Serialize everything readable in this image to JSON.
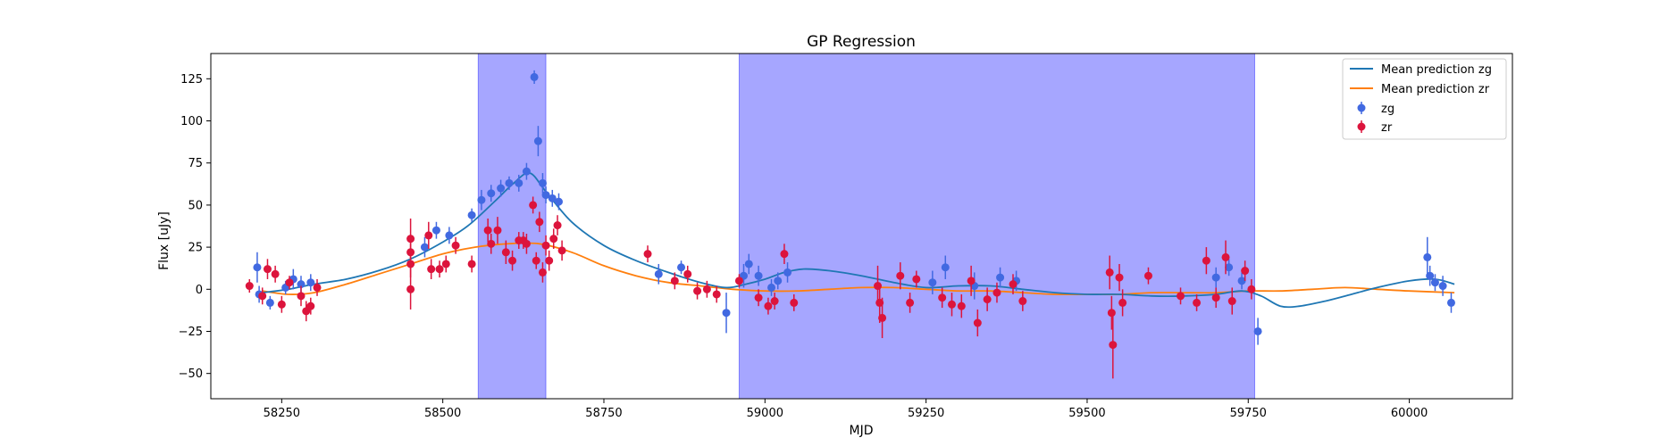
{
  "chart_data": {
    "type": "scatter",
    "title": "GP Regression",
    "xlabel": "MJD",
    "ylabel": "Flux [uJy]",
    "xlim": [
      58140,
      60160
    ],
    "ylim": [
      -65,
      140
    ],
    "xticks": [
      58250,
      58500,
      58750,
      59000,
      59250,
      59500,
      59750,
      60000
    ],
    "yticks": [
      -50,
      -25,
      0,
      25,
      50,
      75,
      100,
      125
    ],
    "legend_position": "top-right",
    "colors": {
      "zg_line": "#1f77b4",
      "zr_line": "#ff7f0e",
      "zg_points": "#4169e1",
      "zr_points": "#dc143c",
      "shade": "#0000ff"
    },
    "shaded_regions": [
      [
        58555,
        58660
      ],
      [
        58960,
        59760
      ]
    ],
    "mean_prediction_zg": {
      "name": "Mean prediction zg",
      "x": [
        58220,
        58260,
        58300,
        58350,
        58400,
        58450,
        58500,
        58540,
        58580,
        58610,
        58635,
        58660,
        58700,
        58750,
        58800,
        58850,
        58900,
        58940,
        58970,
        59000,
        59030,
        59060,
        59100,
        59150,
        59200,
        59250,
        59300,
        59350,
        59400,
        59450,
        59500,
        59550,
        59600,
        59650,
        59700,
        59740,
        59770,
        59800,
        59830,
        59870,
        59910,
        59950,
        60000,
        60040,
        60070
      ],
      "y": [
        -2,
        0,
        3,
        6,
        11,
        18,
        28,
        38,
        52,
        63,
        69,
        58,
        40,
        26,
        17,
        10,
        4,
        1,
        3,
        6,
        10,
        12,
        11,
        8,
        4,
        1,
        2,
        2,
        0,
        -2,
        -3,
        -3,
        -4,
        -4,
        -3,
        -1,
        -4,
        -10,
        -10,
        -7,
        -3,
        1,
        5,
        6,
        3
      ]
    },
    "mean_prediction_zr": {
      "name": "Mean prediction zr",
      "x": [
        58220,
        58260,
        58300,
        58350,
        58400,
        58450,
        58500,
        58550,
        58600,
        58650,
        58700,
        58750,
        58800,
        58850,
        58900,
        58950,
        59000,
        59050,
        59100,
        59150,
        59200,
        59250,
        59300,
        59350,
        59400,
        59450,
        59500,
        59550,
        59600,
        59650,
        59700,
        59750,
        59800,
        59850,
        59900,
        59950,
        60000,
        60070
      ],
      "y": [
        -1,
        -3,
        -2,
        3,
        9,
        15,
        21,
        25,
        27,
        27,
        22,
        14,
        8,
        4,
        2,
        0,
        -1,
        -1,
        0,
        1,
        1,
        0,
        -1,
        -1,
        -2,
        -3,
        -3,
        -3,
        -2,
        -2,
        -2,
        -1,
        -1,
        0,
        1,
        0,
        -1,
        -2
      ]
    },
    "series": [
      {
        "name": "zg",
        "points": [
          [
            58212,
            13,
            9
          ],
          [
            58215,
            -3,
            5
          ],
          [
            58232,
            -8,
            4
          ],
          [
            58256,
            1,
            4
          ],
          [
            58268,
            6,
            6
          ],
          [
            58280,
            3,
            5
          ],
          [
            58295,
            4,
            5
          ],
          [
            58472,
            25,
            6
          ],
          [
            58490,
            35,
            5
          ],
          [
            58510,
            32,
            5
          ],
          [
            58545,
            44,
            4
          ],
          [
            58560,
            53,
            6
          ],
          [
            58575,
            57,
            5
          ],
          [
            58590,
            60,
            5
          ],
          [
            58603,
            63,
            4
          ],
          [
            58618,
            63,
            5
          ],
          [
            58630,
            70,
            5
          ],
          [
            58642,
            126,
            4
          ],
          [
            58648,
            88,
            9
          ],
          [
            58655,
            63,
            6
          ],
          [
            58660,
            56,
            5
          ],
          [
            58670,
            54,
            5
          ],
          [
            58680,
            52,
            5
          ],
          [
            58835,
            9,
            6
          ],
          [
            58870,
            13,
            4
          ],
          [
            58940,
            -14,
            12
          ],
          [
            58967,
            8,
            7
          ],
          [
            58975,
            15,
            6
          ],
          [
            58990,
            8,
            6
          ],
          [
            59010,
            1,
            5
          ],
          [
            59020,
            5,
            5
          ],
          [
            59035,
            10,
            6
          ],
          [
            59260,
            4,
            7
          ],
          [
            59280,
            13,
            7
          ],
          [
            59325,
            2,
            8
          ],
          [
            59365,
            7,
            6
          ],
          [
            59390,
            5,
            6
          ],
          [
            59700,
            7,
            6
          ],
          [
            59720,
            13,
            5
          ],
          [
            59740,
            5,
            5
          ],
          [
            59765,
            -25,
            8
          ],
          [
            60028,
            19,
            12
          ],
          [
            60032,
            8,
            6
          ],
          [
            60040,
            4,
            5
          ],
          [
            60052,
            2,
            6
          ],
          [
            60065,
            -8,
            6
          ]
        ]
      },
      {
        "name": "zr",
        "points": [
          [
            58200,
            2,
            4
          ],
          [
            58220,
            -4,
            5
          ],
          [
            58228,
            12,
            6
          ],
          [
            58240,
            9,
            5
          ],
          [
            58250,
            -9,
            5
          ],
          [
            58262,
            4,
            4
          ],
          [
            58280,
            -4,
            6
          ],
          [
            58288,
            -13,
            6
          ],
          [
            58295,
            -10,
            5
          ],
          [
            58305,
            1,
            5
          ],
          [
            58450,
            30,
            12
          ],
          [
            58450,
            22,
            10
          ],
          [
            58450,
            15,
            8
          ],
          [
            58450,
            0,
            12
          ],
          [
            58478,
            32,
            8
          ],
          [
            58482,
            12,
            6
          ],
          [
            58495,
            12,
            5
          ],
          [
            58505,
            15,
            5
          ],
          [
            58520,
            26,
            5
          ],
          [
            58545,
            15,
            5
          ],
          [
            58570,
            35,
            7
          ],
          [
            58575,
            27,
            6
          ],
          [
            58585,
            35,
            8
          ],
          [
            58598,
            22,
            7
          ],
          [
            58608,
            17,
            6
          ],
          [
            58618,
            29,
            5
          ],
          [
            58625,
            29,
            5
          ],
          [
            58630,
            27,
            6
          ],
          [
            58640,
            50,
            5
          ],
          [
            58645,
            17,
            5
          ],
          [
            58650,
            40,
            6
          ],
          [
            58655,
            10,
            6
          ],
          [
            58660,
            26,
            6
          ],
          [
            58665,
            17,
            6
          ],
          [
            58672,
            30,
            6
          ],
          [
            58678,
            38,
            6
          ],
          [
            58685,
            23,
            6
          ],
          [
            58818,
            21,
            5
          ],
          [
            58860,
            5,
            5
          ],
          [
            58880,
            9,
            5
          ],
          [
            58895,
            -1,
            5
          ],
          [
            58910,
            0,
            5
          ],
          [
            58925,
            -3,
            5
          ],
          [
            58960,
            5,
            4
          ],
          [
            58990,
            -5,
            5
          ],
          [
            59005,
            -10,
            5
          ],
          [
            59015,
            -7,
            5
          ],
          [
            59030,
            21,
            6
          ],
          [
            59045,
            -8,
            5
          ],
          [
            59175,
            2,
            12
          ],
          [
            59178,
            -8,
            12
          ],
          [
            59182,
            -17,
            12
          ],
          [
            59210,
            8,
            8
          ],
          [
            59225,
            -8,
            6
          ],
          [
            59235,
            6,
            5
          ],
          [
            59275,
            -5,
            6
          ],
          [
            59290,
            -9,
            7
          ],
          [
            59305,
            -10,
            7
          ],
          [
            59320,
            5,
            9
          ],
          [
            59330,
            -20,
            8
          ],
          [
            59345,
            -6,
            7
          ],
          [
            59360,
            -2,
            6
          ],
          [
            59385,
            3,
            6
          ],
          [
            59400,
            -7,
            6
          ],
          [
            59535,
            10,
            10
          ],
          [
            59538,
            -14,
            10
          ],
          [
            59540,
            -33,
            20
          ],
          [
            59550,
            7,
            8
          ],
          [
            59555,
            -8,
            8
          ],
          [
            59595,
            8,
            5
          ],
          [
            59645,
            -4,
            5
          ],
          [
            59670,
            -8,
            5
          ],
          [
            59685,
            17,
            8
          ],
          [
            59700,
            -5,
            6
          ],
          [
            59715,
            19,
            10
          ],
          [
            59725,
            -7,
            8
          ],
          [
            59745,
            11,
            6
          ],
          [
            59755,
            0,
            6
          ]
        ]
      }
    ]
  }
}
